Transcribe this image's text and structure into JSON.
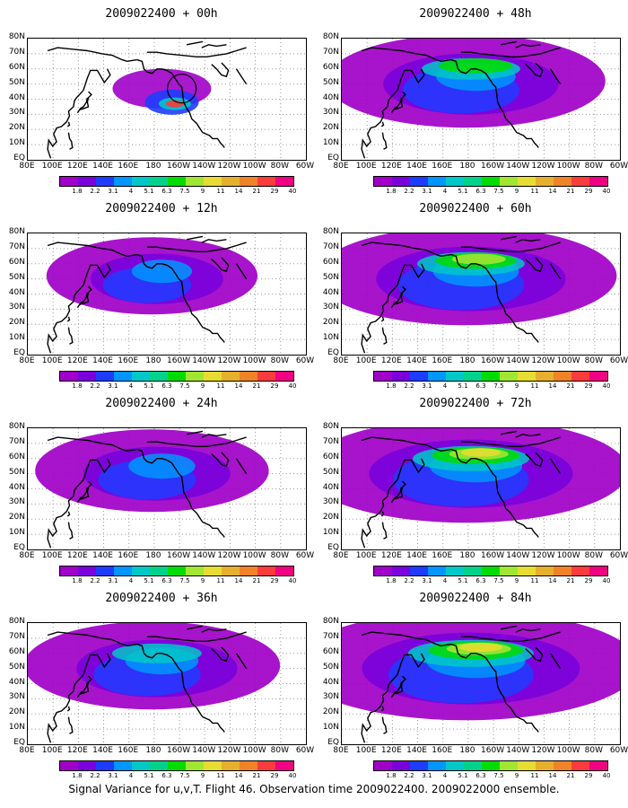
{
  "panels": [
    {
      "title": "2009022400 + 00h",
      "intensity": 0
    },
    {
      "title": "2009022400 + 12h",
      "intensity": 1
    },
    {
      "title": "2009022400 + 24h",
      "intensity": 2
    },
    {
      "title": "2009022400 + 36h",
      "intensity": 3
    },
    {
      "title": "2009022400 + 48h",
      "intensity": 4
    },
    {
      "title": "2009022400 + 60h",
      "intensity": 5
    },
    {
      "title": "2009022400 + 72h",
      "intensity": 6
    },
    {
      "title": "2009022400 + 84h",
      "intensity": 7
    }
  ],
  "y_ticks": [
    "80N",
    "70N",
    "60N",
    "50N",
    "40N",
    "30N",
    "20N",
    "10N",
    "EQ"
  ],
  "x_ticks": [
    "80E",
    "100E",
    "120E",
    "140E",
    "160E",
    "180",
    "160W",
    "140W",
    "120W",
    "100W",
    "80W",
    "60W"
  ],
  "colorbar": {
    "labels": [
      "1.8",
      "2.2",
      "3.1",
      "4",
      "5.1",
      "6.3",
      "7.5",
      "9",
      "11",
      "14",
      "21",
      "29",
      "40"
    ],
    "colors": [
      "#a000c8",
      "#7a00dc",
      "#1e3cff",
      "#0096ff",
      "#00c8c8",
      "#00d28c",
      "#00dc00",
      "#a0e632",
      "#e6dc32",
      "#e6af2d",
      "#f08228",
      "#fa3c3c",
      "#f00082"
    ]
  },
  "caption": "Signal Variance for u,v,T. Flight 46. Observation time 2009022400. 2009022000 ensemble."
}
